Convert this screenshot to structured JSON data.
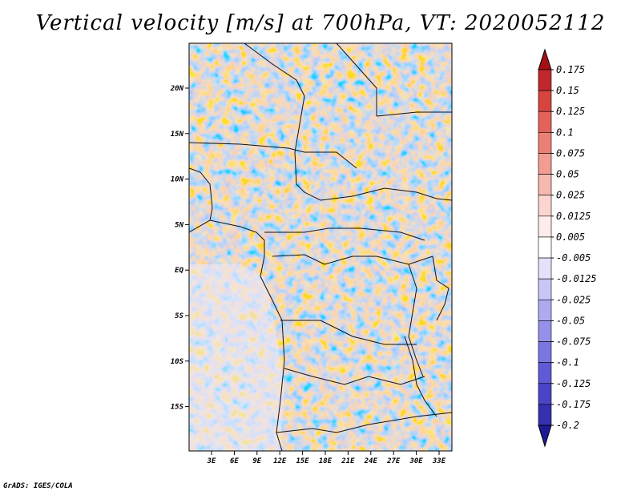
{
  "title": "Vertical velocity [m/s] at 700hPa, VT: 2020052112",
  "credit": "GrADS: IGES/COLA",
  "map": {
    "lon_labels": [
      "3E",
      "6E",
      "9E",
      "12E",
      "15E",
      "18E",
      "21E",
      "24E",
      "27E",
      "30E",
      "33E"
    ],
    "lat_labels": [
      "20N",
      "15N",
      "10N",
      "5N",
      "EQ",
      "5S",
      "10S",
      "15S"
    ]
  },
  "colorbar": {
    "labels": [
      "0.175",
      "0.15",
      "0.125",
      "0.1",
      "0.075",
      "0.05",
      "0.025",
      "0.0125",
      "0.005",
      "-0.005",
      "-0.0125",
      "-0.025",
      "-0.05",
      "-0.075",
      "-0.1",
      "-0.125",
      "-0.175",
      "-0.2"
    ],
    "colors": [
      "#a50f15",
      "#c1272d",
      "#d7443f",
      "#e3625a",
      "#ec7f75",
      "#f29c92",
      "#f7b8b0",
      "#fbd6d1",
      "#fdecea",
      "#ffffff",
      "#e4e2fb",
      "#c9c6f6",
      "#aeaaf0",
      "#9591ea",
      "#7a76e1",
      "#5f5ad5",
      "#4a45c6",
      "#3430b0",
      "#1e1a96"
    ]
  }
}
